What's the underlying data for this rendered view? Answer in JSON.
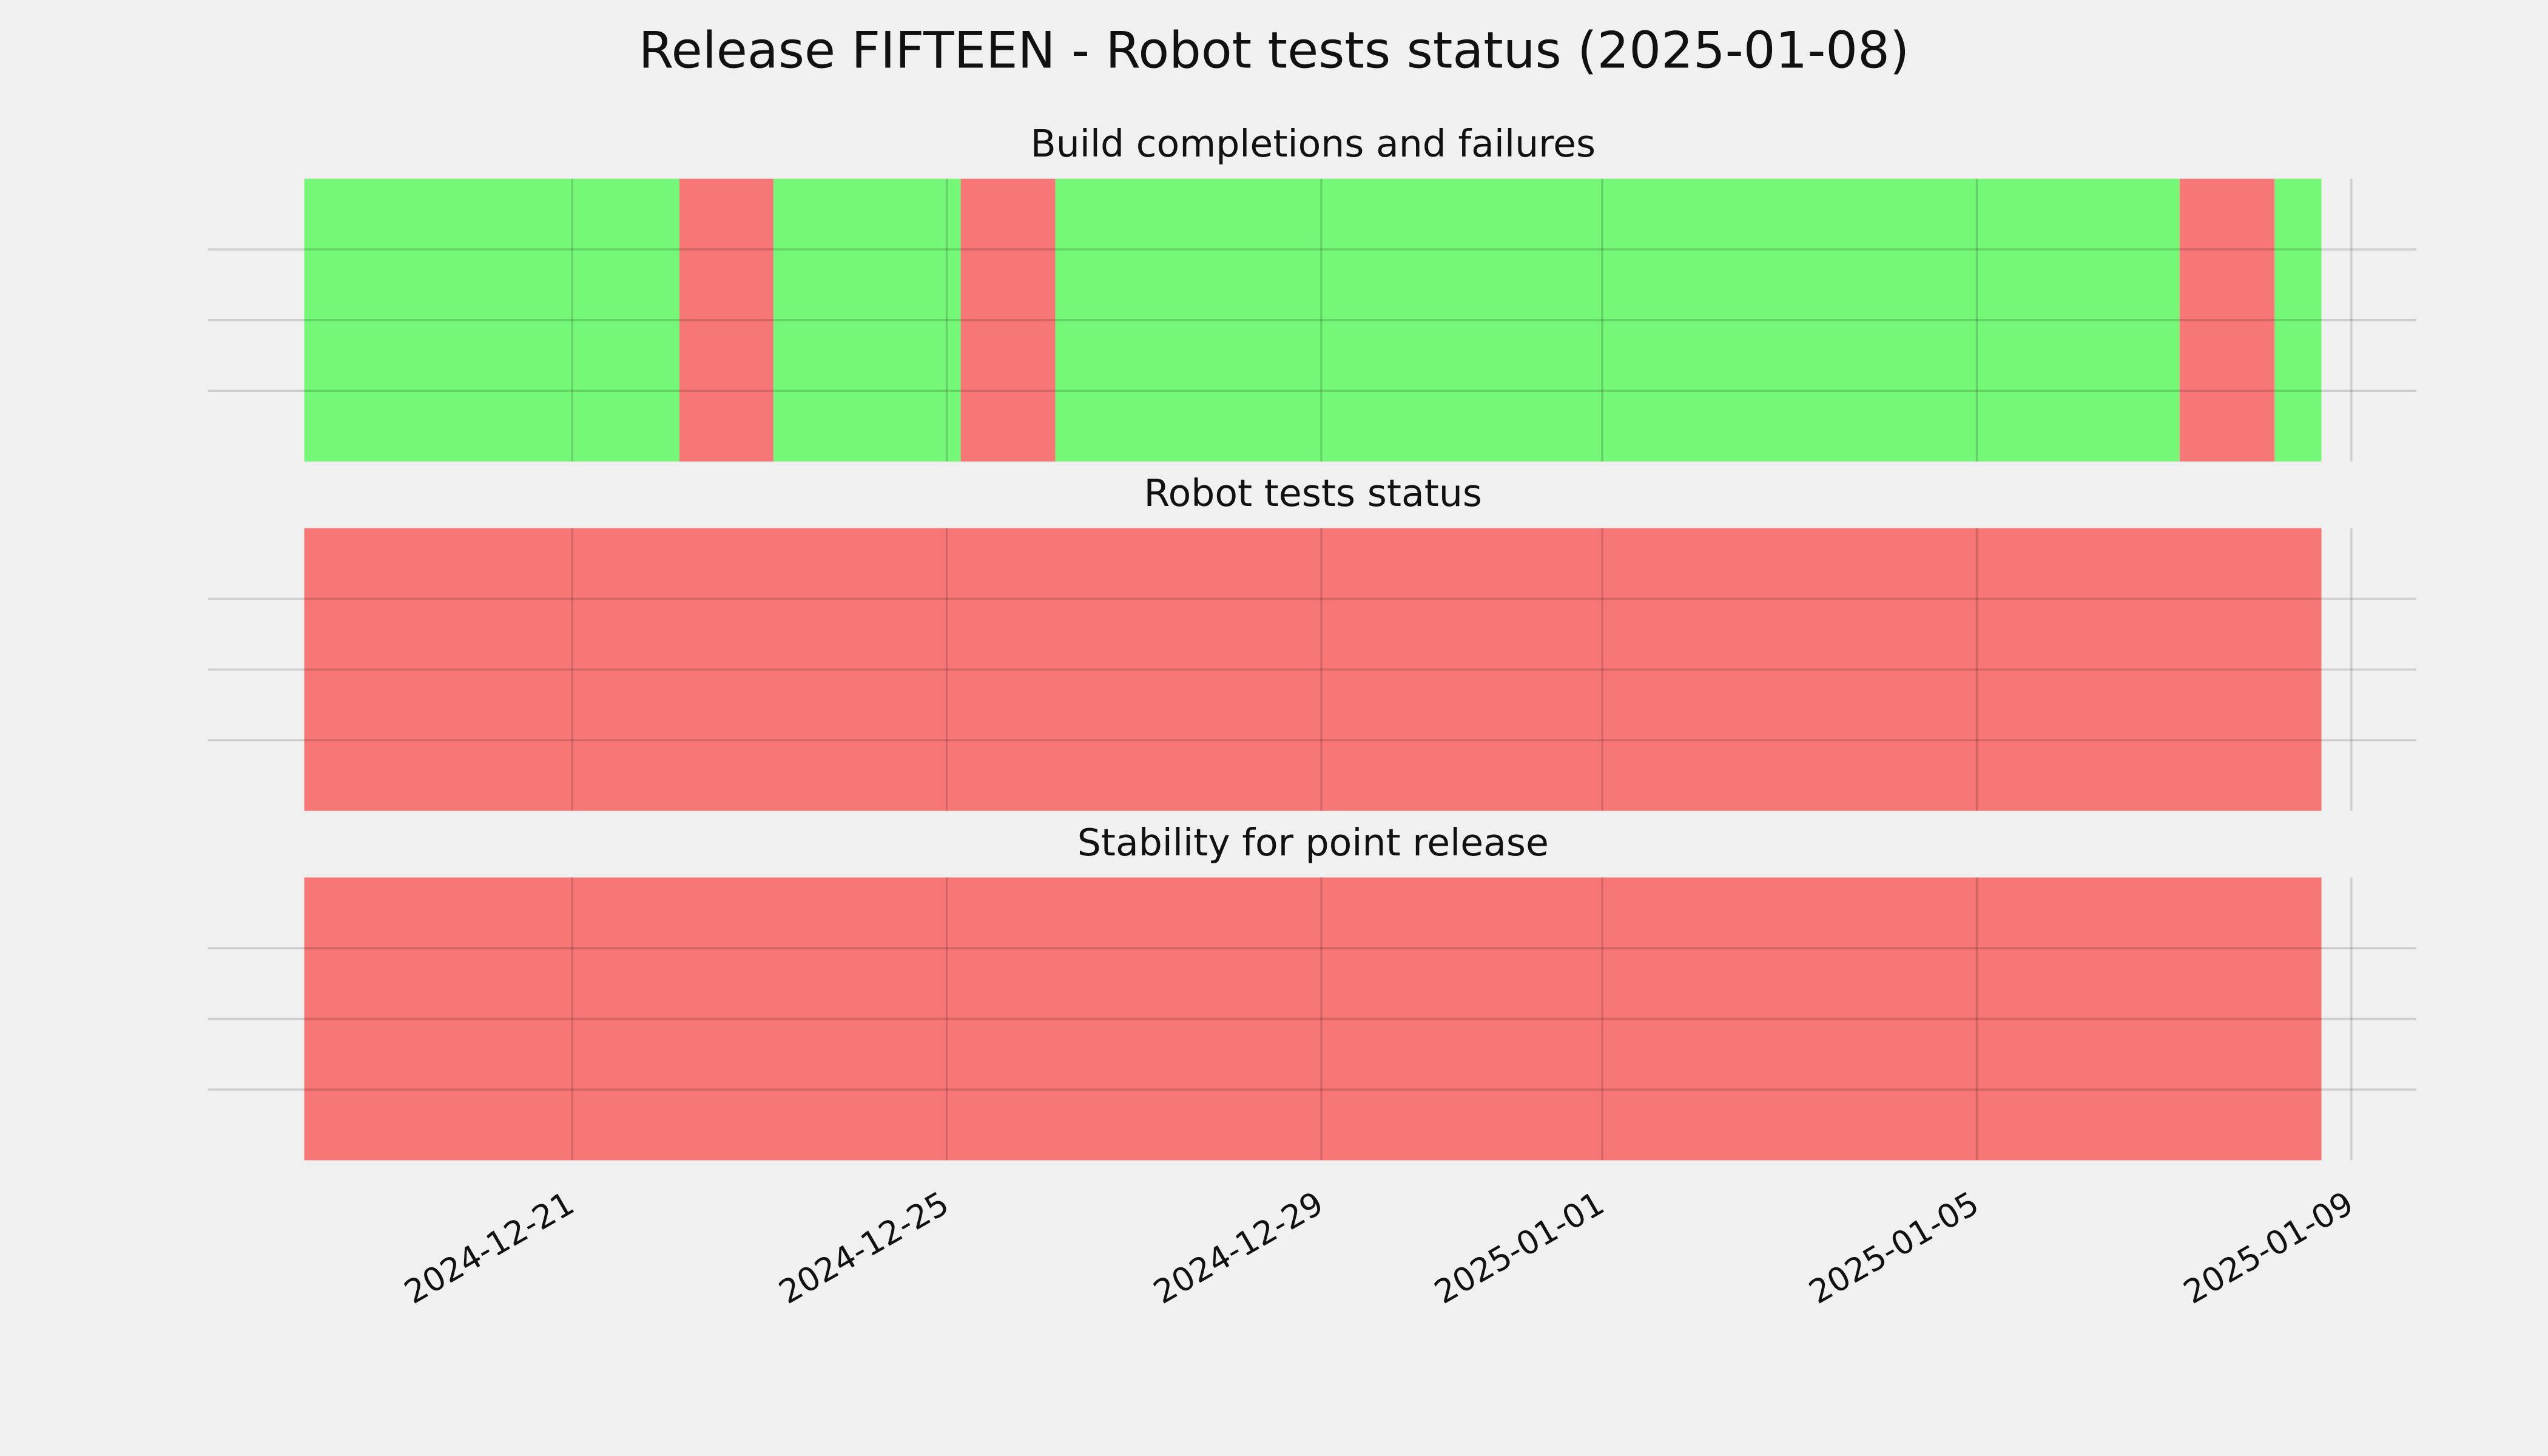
{
  "title": "Release FIFTEEN - Robot tests status (2025-01-08)",
  "chart_data": [
    {
      "type": "timeline",
      "title": "Build completions and failures",
      "segments": [
        {
          "start": "2024-12-18 03:20",
          "end": "2024-12-22 03:30",
          "color": "#75f777"
        },
        {
          "start": "2024-12-22 03:30",
          "end": "2024-12-23 03:35",
          "color": "#f77777"
        },
        {
          "start": "2024-12-23 03:35",
          "end": "2024-12-25 03:35",
          "color": "#75f777"
        },
        {
          "start": "2024-12-25 03:35",
          "end": "2024-12-26 03:50",
          "color": "#f77777"
        },
        {
          "start": "2024-12-26 03:50",
          "end": "2025-01-07 04:00",
          "color": "#75f777"
        },
        {
          "start": "2025-01-07 04:00",
          "end": "2025-01-08 04:20",
          "color": "#f77777"
        },
        {
          "start": "2025-01-08 04:20",
          "end": "2025-01-08 16:20",
          "color": "#75f777"
        }
      ],
      "xlim": [
        "2024-12-17 02:40",
        "2025-01-09 16:40"
      ],
      "xticks": [
        "2024-12-21",
        "2024-12-25",
        "2024-12-29",
        "2025-01-01",
        "2025-01-05",
        "2025-01-09"
      ],
      "ylim": [
        0,
        1
      ],
      "yticks": [
        0.25,
        0.5,
        0.75
      ],
      "grid": true
    },
    {
      "type": "timeline",
      "title": "Robot tests status",
      "segments": [
        {
          "start": "2024-12-18 03:20",
          "end": "2025-01-08 16:20",
          "color": "#f77777"
        }
      ],
      "xlim": [
        "2024-12-17 02:40",
        "2025-01-09 16:40"
      ],
      "xticks": [
        "2024-12-21",
        "2024-12-25",
        "2024-12-29",
        "2025-01-01",
        "2025-01-05",
        "2025-01-09"
      ],
      "ylim": [
        0,
        1
      ],
      "yticks": [
        0.25,
        0.5,
        0.75
      ],
      "grid": true
    },
    {
      "type": "timeline",
      "title": "Stability for point release",
      "segments": [
        {
          "start": "2024-12-18 03:20",
          "end": "2025-01-08 16:20",
          "color": "#f77777"
        }
      ],
      "xlim": [
        "2024-12-17 02:40",
        "2025-01-09 16:40"
      ],
      "xticks": [
        "2024-12-21",
        "2024-12-25",
        "2024-12-29",
        "2025-01-01",
        "2025-01-05",
        "2025-01-09"
      ],
      "ylim": [
        0,
        1
      ],
      "yticks": [
        0.25,
        0.5,
        0.75
      ],
      "grid": true
    }
  ]
}
